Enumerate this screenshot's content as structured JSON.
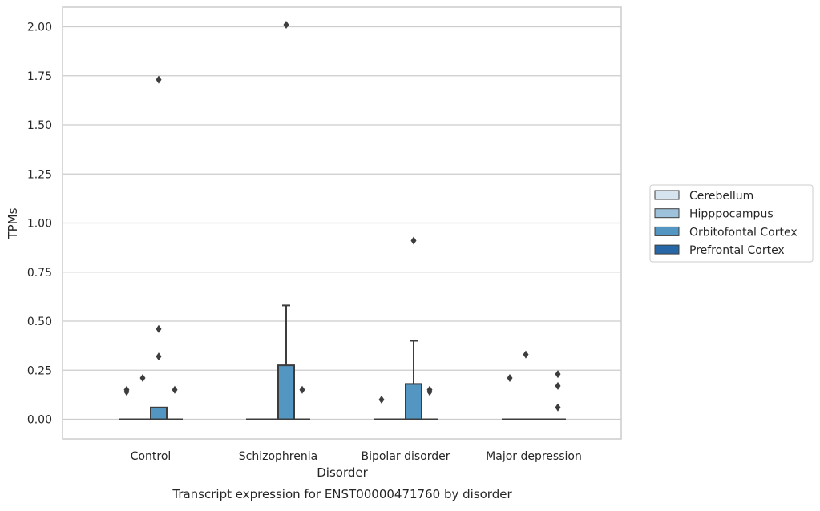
{
  "chart_data": {
    "type": "boxplot",
    "title": "Transcript expression for ENST00000471760 by disorder",
    "xlabel": "Disorder",
    "ylabel": "TPMs",
    "ylim": [
      -0.1,
      2.1
    ],
    "yticks": [
      0.0,
      0.25,
      0.5,
      0.75,
      1.0,
      1.25,
      1.5,
      1.75,
      2.0
    ],
    "ytick_labels": [
      "0.00",
      "0.25",
      "0.50",
      "0.75",
      "1.00",
      "1.25",
      "1.50",
      "1.75",
      "2.00"
    ],
    "grid": true,
    "legend_position": "outside-right",
    "categories": [
      "Control",
      "Schizophrenia",
      "Bipolar disorder",
      "Major depression"
    ],
    "series": [
      {
        "name": "Cerebellum",
        "color": "#d6e4f0",
        "boxes": [
          {
            "q1": 0,
            "median": 0,
            "q3": 0,
            "whisker_low": 0,
            "whisker_high": 0,
            "outliers": [
              0.15,
              0.14
            ]
          },
          {
            "q1": 0,
            "median": 0,
            "q3": 0,
            "whisker_low": 0,
            "whisker_high": 0,
            "outliers": []
          },
          {
            "q1": 0,
            "median": 0,
            "q3": 0,
            "whisker_low": 0,
            "whisker_high": 0,
            "outliers": [
              0.1
            ]
          },
          {
            "q1": 0,
            "median": 0,
            "q3": 0,
            "whisker_low": 0,
            "whisker_high": 0,
            "outliers": [
              0.21
            ]
          }
        ]
      },
      {
        "name": "Hipppocampus",
        "color": "#9ec2dc",
        "boxes": [
          {
            "q1": 0,
            "median": 0,
            "q3": 0,
            "whisker_low": 0,
            "whisker_high": 0,
            "outliers": [
              0.21
            ]
          },
          {
            "q1": 0,
            "median": 0,
            "q3": 0,
            "whisker_low": 0,
            "whisker_high": 0,
            "outliers": []
          },
          {
            "q1": 0,
            "median": 0,
            "q3": 0,
            "whisker_low": 0,
            "whisker_high": 0,
            "outliers": []
          },
          {
            "q1": 0,
            "median": 0,
            "q3": 0,
            "whisker_low": 0,
            "whisker_high": 0,
            "outliers": [
              0.33
            ]
          }
        ]
      },
      {
        "name": "Orbitofontal Cortex",
        "color": "#5496c2",
        "boxes": [
          {
            "q1": 0,
            "median": 0,
            "q3": 0.06,
            "whisker_low": 0,
            "whisker_high": 0.06,
            "outliers": [
              1.73,
              0.46,
              0.32
            ]
          },
          {
            "q1": 0,
            "median": 0,
            "q3": 0.275,
            "whisker_low": 0,
            "whisker_high": 0.58,
            "outliers": [
              2.01
            ]
          },
          {
            "q1": 0,
            "median": 0,
            "q3": 0.18,
            "whisker_low": 0,
            "whisker_high": 0.4,
            "outliers": [
              0.91
            ]
          },
          {
            "q1": 0,
            "median": 0,
            "q3": 0,
            "whisker_low": 0,
            "whisker_high": 0,
            "outliers": []
          }
        ]
      },
      {
        "name": "Prefrontal Cortex",
        "color": "#2767a8",
        "boxes": [
          {
            "q1": 0,
            "median": 0,
            "q3": 0,
            "whisker_low": 0,
            "whisker_high": 0,
            "outliers": [
              0.15
            ]
          },
          {
            "q1": 0,
            "median": 0,
            "q3": 0,
            "whisker_low": 0,
            "whisker_high": 0,
            "outliers": [
              0.15
            ]
          },
          {
            "q1": 0,
            "median": 0,
            "q3": 0,
            "whisker_low": 0,
            "whisker_high": 0,
            "outliers": [
              0.15,
              0.14
            ]
          },
          {
            "q1": 0,
            "median": 0,
            "q3": 0,
            "whisker_low": 0,
            "whisker_high": 0,
            "outliers": [
              0.23,
              0.17,
              0.06
            ]
          }
        ]
      }
    ]
  },
  "style": {
    "grid_color": "#cccccc",
    "frame_color": "#cccccc",
    "line_color": "#3d3d3d",
    "text_color": "#262626"
  }
}
